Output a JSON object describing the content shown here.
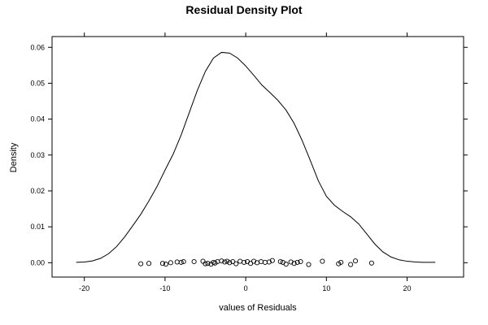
{
  "chart_data": {
    "type": "line",
    "title": "Residual Density Plot",
    "xlabel": "values of Residuals",
    "ylabel": "Density",
    "xlim": [
      -24,
      27
    ],
    "ylim": [
      -0.004,
      0.063
    ],
    "x_ticks": [
      -20,
      -10,
      0,
      10,
      20
    ],
    "x_tick_labels": [
      "-20",
      "-10",
      "0",
      "10",
      "20"
    ],
    "y_ticks": [
      0,
      0.01,
      0.02,
      0.03,
      0.04,
      0.05,
      0.06
    ],
    "y_tick_labels": [
      "0.00",
      "0.01",
      "0.02",
      "0.03",
      "0.04",
      "0.05",
      "0.06"
    ],
    "grid": false,
    "series": [
      {
        "points": [
          [
            -21,
            0.0001
          ],
          [
            -20,
            0.0002
          ],
          [
            -19,
            0.0005
          ],
          [
            -18,
            0.0012
          ],
          [
            -17,
            0.0025
          ],
          [
            -16,
            0.0045
          ],
          [
            -15,
            0.0072
          ],
          [
            -14,
            0.0103
          ],
          [
            -13,
            0.0135
          ],
          [
            -12,
            0.0172
          ],
          [
            -11,
            0.0212
          ],
          [
            -10,
            0.0258
          ],
          [
            -9,
            0.0302
          ],
          [
            -8,
            0.0356
          ],
          [
            -7,
            0.0418
          ],
          [
            -6,
            0.048
          ],
          [
            -5,
            0.0533
          ],
          [
            -4,
            0.057
          ],
          [
            -3,
            0.0586
          ],
          [
            -2,
            0.0584
          ],
          [
            -1,
            0.057
          ],
          [
            0,
            0.0548
          ],
          [
            1,
            0.0522
          ],
          [
            2,
            0.0495
          ],
          [
            3,
            0.0474
          ],
          [
            4,
            0.0452
          ],
          [
            5,
            0.0425
          ],
          [
            6,
            0.0388
          ],
          [
            7,
            0.034
          ],
          [
            8,
            0.0285
          ],
          [
            9,
            0.0228
          ],
          [
            10,
            0.0185
          ],
          [
            11,
            0.016
          ],
          [
            12,
            0.0143
          ],
          [
            13,
            0.0128
          ],
          [
            14,
            0.0108
          ],
          [
            15,
            0.008
          ],
          [
            16,
            0.0052
          ],
          [
            17,
            0.003
          ],
          [
            18,
            0.0016
          ],
          [
            19,
            0.0008
          ],
          [
            20,
            0.0004
          ],
          [
            21,
            0.0002
          ],
          [
            22,
            0.0001
          ],
          [
            23.5,
            0.0001
          ]
        ]
      }
    ],
    "rug_points": [
      [
        -13.0,
        -0.0003
      ],
      [
        -12.0,
        -0.0002
      ],
      [
        -10.3,
        -0.0002
      ],
      [
        -9.9,
        -0.0004
      ],
      [
        -9.3,
        0.0
      ],
      [
        -8.5,
        0.0002
      ],
      [
        -8.0,
        0.0001
      ],
      [
        -7.7,
        0.0003
      ],
      [
        -6.4,
        0.0003
      ],
      [
        -5.3,
        0.0004
      ],
      [
        -5.0,
        -0.0003
      ],
      [
        -4.7,
        -0.0002
      ],
      [
        -4.3,
        -0.0004
      ],
      [
        -4.0,
        0.0001
      ],
      [
        -3.8,
        -0.0001
      ],
      [
        -3.5,
        0.0003
      ],
      [
        -3.0,
        0.0005
      ],
      [
        -2.6,
        0.0002
      ],
      [
        -2.3,
        0.0004
      ],
      [
        -2.0,
        0.0
      ],
      [
        -1.6,
        0.0003
      ],
      [
        -1.2,
        -0.0003
      ],
      [
        -0.7,
        0.0004
      ],
      [
        -0.2,
        0.0001
      ],
      [
        0.2,
        0.0003
      ],
      [
        0.6,
        -0.0002
      ],
      [
        1.0,
        0.0004
      ],
      [
        1.4,
        0.0
      ],
      [
        1.9,
        0.0003
      ],
      [
        2.4,
        0.0001
      ],
      [
        2.9,
        0.0002
      ],
      [
        3.3,
        0.0006
      ],
      [
        4.3,
        0.0003
      ],
      [
        4.6,
        0.0001
      ],
      [
        5.0,
        -0.0004
      ],
      [
        5.6,
        0.0002
      ],
      [
        6.0,
        -0.0002
      ],
      [
        6.4,
        0.0001
      ],
      [
        6.8,
        0.0003
      ],
      [
        7.8,
        -0.0005
      ],
      [
        9.5,
        0.0004
      ],
      [
        11.5,
        -0.0003
      ],
      [
        11.8,
        0.0001
      ],
      [
        13.0,
        -0.0005
      ],
      [
        13.6,
        0.0005
      ],
      [
        15.6,
        -0.0001
      ]
    ]
  }
}
